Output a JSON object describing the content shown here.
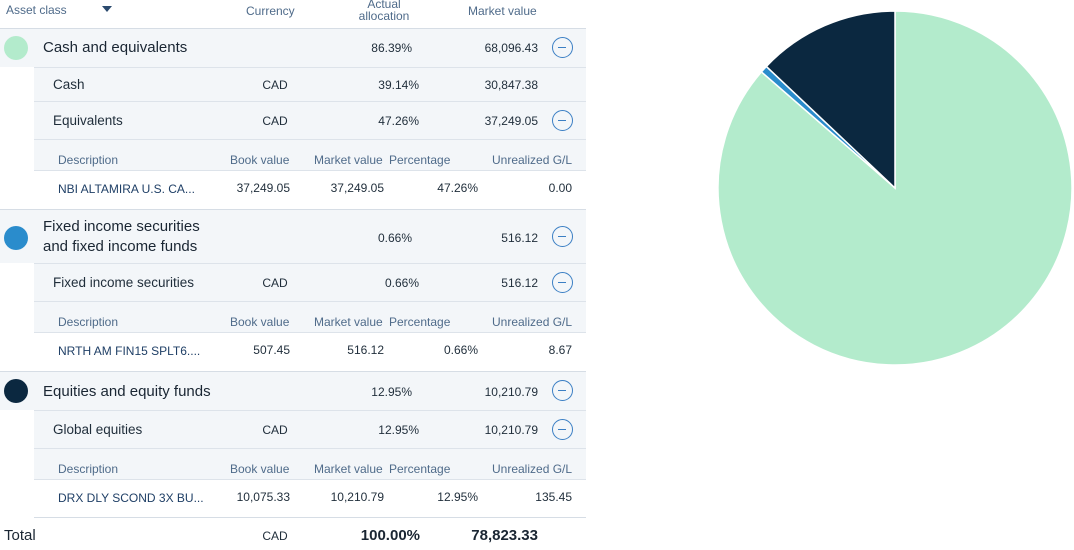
{
  "header": {
    "asset_class": "Asset class",
    "currency": "Currency",
    "actual_allocation_l1": "Actual",
    "actual_allocation_l2": "allocation",
    "market_value": "Market value"
  },
  "detail_headers": {
    "description": "Description",
    "book_value": "Book value",
    "market_value": "Market value",
    "percentage": "Percentage",
    "unrealized": "Unrealized G/L"
  },
  "classes": [
    {
      "name_l1": "Cash and equivalents",
      "name_l2": "",
      "allocation": "86.39%",
      "market_value": "68,096.43",
      "color": "#b3ebcc",
      "subs": [
        {
          "name": "Cash",
          "currency": "CAD",
          "allocation": "39.14%",
          "market_value": "30,847.38"
        },
        {
          "name": "Equivalents",
          "currency": "CAD",
          "allocation": "47.26%",
          "market_value": "37,249.05",
          "holding": {
            "description": "NBI ALTAMIRA U.S. CA...",
            "book_value": "37,249.05",
            "market_value": "37,249.05",
            "percentage": "47.26%",
            "unrealized": "0.00"
          }
        }
      ]
    },
    {
      "name_l1": "Fixed income securities",
      "name_l2": "and fixed income funds",
      "allocation": "0.66%",
      "market_value": "516.12",
      "color": "#2a8ccc",
      "subs": [
        {
          "name": "Fixed income securities",
          "currency": "CAD",
          "allocation": "0.66%",
          "market_value": "516.12",
          "holding": {
            "description": "NRTH AM FIN15 SPLT6....",
            "book_value": "507.45",
            "market_value": "516.12",
            "percentage": "0.66%",
            "unrealized": "8.67"
          }
        }
      ]
    },
    {
      "name_l1": "Equities and equity funds",
      "name_l2": "",
      "allocation": "12.95%",
      "market_value": "10,210.79",
      "color": "#0b2840",
      "subs": [
        {
          "name": "Global equities",
          "currency": "CAD",
          "allocation": "12.95%",
          "market_value": "10,210.79",
          "holding": {
            "description": "DRX DLY SCOND 3X BU...",
            "book_value": "10,075.33",
            "market_value": "10,210.79",
            "percentage": "12.95%",
            "unrealized": "135.45"
          }
        }
      ]
    }
  ],
  "total": {
    "label": "Total",
    "currency": "CAD",
    "allocation": "100.00%",
    "market_value": "78,823.33"
  },
  "chart_data": {
    "type": "pie",
    "categories": [
      "Cash and equivalents",
      "Fixed income securities and fixed income funds",
      "Equities and equity funds"
    ],
    "values": [
      86.39,
      0.66,
      12.95
    ],
    "colors": [
      "#b3ebcc",
      "#2a8ccc",
      "#0b2840"
    ]
  }
}
